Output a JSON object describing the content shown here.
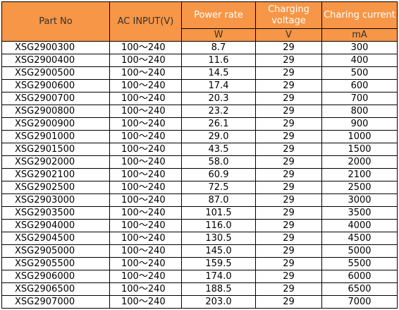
{
  "table": {
    "header": {
      "part_no": "Part No",
      "ac_input": "AC INPUT(V)",
      "power_rate": "Power rate",
      "charging_voltage": "Charging voltage",
      "charging_current": "Charing current",
      "units": [
        "W",
        "V",
        "mA"
      ]
    },
    "rows": [
      [
        "XSG2900300",
        "100～240",
        "8.7",
        "29",
        "300"
      ],
      [
        "XSG2900400",
        "100～240",
        "11.6",
        "29",
        "400"
      ],
      [
        "XSG2900500",
        "100～240",
        "14.5",
        "29",
        "500"
      ],
      [
        "XSG2900600",
        "100～240",
        "17.4",
        "29",
        "600"
      ],
      [
        "XSG2900700",
        "100～240",
        "20.3",
        "29",
        "700"
      ],
      [
        "XSG2900800",
        "100～240",
        "23.2",
        "29",
        "800"
      ],
      [
        "XSG2900900",
        "100～240",
        "26.1",
        "29",
        "900"
      ],
      [
        "XSG2901000",
        "100～240",
        "29.0",
        "29",
        "1000"
      ],
      [
        "XSG2901500",
        "100～240",
        "43.5",
        "29",
        "1500"
      ],
      [
        "XSG2902000",
        "100～240",
        "58.0",
        "29",
        "2000"
      ],
      [
        "XSG2902100",
        "100～240",
        "60.9",
        "29",
        "2100"
      ],
      [
        "XSG2902500",
        "100～240",
        "72.5",
        "29",
        "2500"
      ],
      [
        "XSG2903000",
        "100～240",
        "87.0",
        "29",
        "3000"
      ],
      [
        "XSG2903500",
        "100～240",
        "101.5",
        "29",
        "3500"
      ],
      [
        "XSG2904000",
        "100～240",
        "116.0",
        "29",
        "4000"
      ],
      [
        "XSG2904500",
        "100～240",
        "130.5",
        "29",
        "4500"
      ],
      [
        "XSG2905000",
        "100～240",
        "145.0",
        "29",
        "5000"
      ],
      [
        "XSG2905500",
        "100～240",
        "159.5",
        "29",
        "5500"
      ],
      [
        "XSG2906000",
        "100～240",
        "174.0",
        "29",
        "6000"
      ],
      [
        "XSG2906500",
        "100～240",
        "188.5",
        "29",
        "6500"
      ],
      [
        "XSG2907000",
        "100～240",
        "203.0",
        "29",
        "7000"
      ]
    ]
  }
}
